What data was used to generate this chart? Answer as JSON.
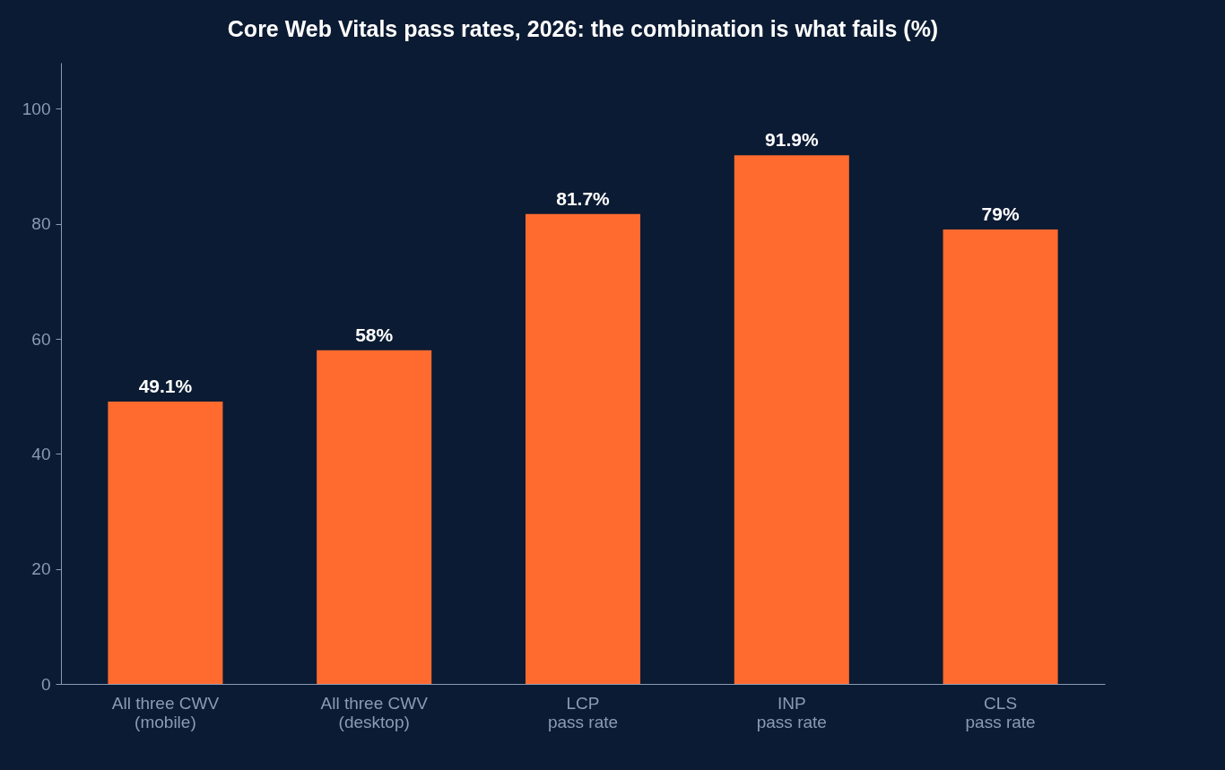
{
  "chart_data": {
    "type": "bar",
    "title": "Core Web Vitals pass rates, 2026: the combination is what fails (%)",
    "categories": [
      "All three CWV\n(mobile)",
      "All three CWV\n(desktop)",
      "LCP\npass rate",
      "INP\npass rate",
      "CLS\npass rate"
    ],
    "values": [
      49.1,
      58,
      81.7,
      91.9,
      79
    ],
    "value_labels": [
      "49.1%",
      "58%",
      "81.7%",
      "91.9%",
      "79%"
    ],
    "color": "#ff6b2f",
    "ylim": [
      0,
      108
    ],
    "yticks": [
      0,
      20,
      40,
      60,
      80,
      100
    ],
    "grid": false
  }
}
